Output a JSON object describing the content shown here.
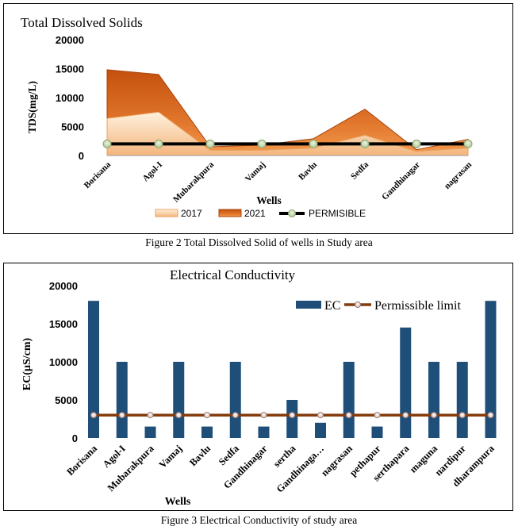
{
  "chart_data": [
    {
      "type": "area",
      "title": "Total Dissolved Solids",
      "xlabel": "Wells",
      "ylabel": "TDS(mg/L)",
      "ylim": [
        0,
        20000
      ],
      "yticks": [
        0,
        5000,
        10000,
        15000,
        20000
      ],
      "categories": [
        "Borisana",
        "Agol-I",
        "Mubarakpura",
        "Vamaj",
        "Bavlu",
        "Sedfa",
        "Gandhinagar",
        "nagrasan"
      ],
      "series": [
        {
          "name": "2017",
          "kind": "area",
          "color": "#f6c796",
          "values": [
            6400,
            7500,
            900,
            900,
            1300,
            3500,
            700,
            1300
          ]
        },
        {
          "name": "2021",
          "kind": "area",
          "color": "#d2601a",
          "values": [
            14800,
            14000,
            1500,
            1800,
            2900,
            8000,
            1000,
            2800
          ]
        },
        {
          "name": "PERMISIBLE",
          "kind": "line",
          "color": "#000000",
          "marker_color": "#c9dbb5",
          "values": [
            2000,
            2000,
            2000,
            2000,
            2000,
            2000,
            2000,
            2000
          ]
        }
      ],
      "legend": "bottom",
      "grid": false
    },
    {
      "type": "bar",
      "title": "Electrical Conductivity",
      "xlabel": "Wells",
      "ylabel": "EC(µS/cm)",
      "ylim": [
        0,
        20000
      ],
      "yticks": [
        0,
        5000,
        10000,
        15000,
        20000
      ],
      "categories": [
        "Borisana",
        "Agol-I",
        "Mubarakpura",
        "Vamaj",
        "Bavlu",
        "Sedfa",
        "Gandhinagar",
        "sertha",
        "Gandhinaga…",
        "nagrasan",
        "pethapur",
        "serthapara",
        "maguna",
        "nardipur",
        "dharampura"
      ],
      "series": [
        {
          "name": "EC",
          "kind": "bar",
          "color": "#1f4e79",
          "values": [
            18000,
            10000,
            1500,
            10000,
            1500,
            10000,
            1500,
            5000,
            2000,
            10000,
            1500,
            14500,
            10000,
            10000,
            18000
          ]
        },
        {
          "name": "Permissible limit",
          "kind": "line",
          "color": "#843c0c",
          "marker_color": "#f2dcdb",
          "values": [
            3000,
            3000,
            3000,
            3000,
            3000,
            3000,
            3000,
            3000,
            3000,
            3000,
            3000,
            3000,
            3000,
            3000,
            3000
          ]
        }
      ],
      "legend": "top-right",
      "grid": false
    }
  ],
  "captions": {
    "fig2": "Figure 2 Total Dissolved Solid of wells in Study area",
    "fig3": "Figure 3 Electrical Conductivity of study area"
  }
}
